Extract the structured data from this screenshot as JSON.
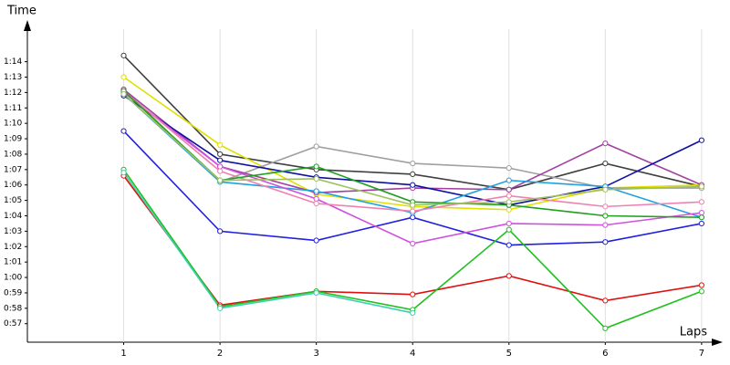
{
  "chart_data": {
    "type": "line",
    "y_label": "Time",
    "x_label": "Laps",
    "x": [
      1,
      2,
      3,
      4,
      5,
      6,
      7
    ],
    "xlim": [
      0,
      7.2
    ],
    "xticks": [
      1,
      2,
      3,
      4,
      5,
      6,
      7
    ],
    "ylim": [
      55.8,
      76.7
    ],
    "yticks": [
      {
        "value": 57,
        "label": "0:57"
      },
      {
        "value": 58,
        "label": "0:58"
      },
      {
        "value": 59,
        "label": "0:59"
      },
      {
        "value": 60,
        "label": "1:00"
      },
      {
        "value": 61,
        "label": "1:01"
      },
      {
        "value": 62,
        "label": "1:02"
      },
      {
        "value": 63,
        "label": "1:03"
      },
      {
        "value": 64,
        "label": "1:04"
      },
      {
        "value": 65,
        "label": "1:05"
      },
      {
        "value": 66,
        "label": "1:06"
      },
      {
        "value": 67,
        "label": "1:07"
      },
      {
        "value": 68,
        "label": "1:08"
      },
      {
        "value": 69,
        "label": "1:09"
      },
      {
        "value": 70,
        "label": "1:10"
      },
      {
        "value": 71,
        "label": "1:11"
      },
      {
        "value": 72,
        "label": "1:12"
      },
      {
        "value": 73,
        "label": "1:13"
      },
      {
        "value": 74,
        "label": "1:14"
      }
    ],
    "grid": "x",
    "series": [
      {
        "color": "#404040",
        "values": [
          74.4,
          68.0,
          67.0,
          66.7,
          65.7,
          67.4,
          65.9
        ]
      },
      {
        "color": "#e0e000",
        "values": [
          73.0,
          68.6,
          65.4,
          64.6,
          64.4,
          65.8,
          66.0
        ]
      },
      {
        "color": "#a0a0a0",
        "values": [
          72.2,
          66.2,
          68.5,
          67.4,
          67.1,
          65.8,
          65.8
        ]
      },
      {
        "color": "#a040a0",
        "values": [
          72.2,
          67.2,
          65.5,
          65.8,
          65.7,
          68.7,
          66.0
        ]
      },
      {
        "color": "#1010a0",
        "values": [
          71.8,
          67.6,
          66.5,
          66.0,
          64.7,
          65.9,
          68.9
        ]
      },
      {
        "color": "#2020e0",
        "values": [
          69.5,
          63.0,
          62.4,
          63.9,
          62.1,
          62.3,
          63.5
        ]
      },
      {
        "color": "#20a0e0",
        "values": [
          71.9,
          66.2,
          65.6,
          64.2,
          66.3,
          65.9,
          63.9
        ]
      },
      {
        "color": "#d050e0",
        "values": [
          72.0,
          67.2,
          65.1,
          62.2,
          63.5,
          63.4,
          64.2
        ]
      },
      {
        "color": "#f080b0",
        "values": [
          72.1,
          66.9,
          64.8,
          64.3,
          65.3,
          64.6,
          64.9
        ]
      },
      {
        "color": "#20a020",
        "values": [
          72.1,
          66.3,
          67.2,
          64.9,
          64.7,
          64.0,
          63.9
        ]
      },
      {
        "color": "#a0c060",
        "values": [
          71.9,
          66.3,
          66.4,
          64.7,
          64.9,
          65.7,
          65.9
        ]
      },
      {
        "color": "#e01010",
        "values": [
          66.6,
          58.2,
          59.1,
          58.9,
          60.1,
          58.5,
          59.5
        ]
      },
      {
        "color": "#20c020",
        "values": [
          67.0,
          58.1,
          59.1,
          57.9,
          63.1,
          56.7,
          59.1
        ]
      },
      {
        "color": "#40d0b0",
        "values": [
          66.8,
          58.0,
          59.0,
          57.7,
          null,
          null,
          null
        ]
      }
    ]
  }
}
